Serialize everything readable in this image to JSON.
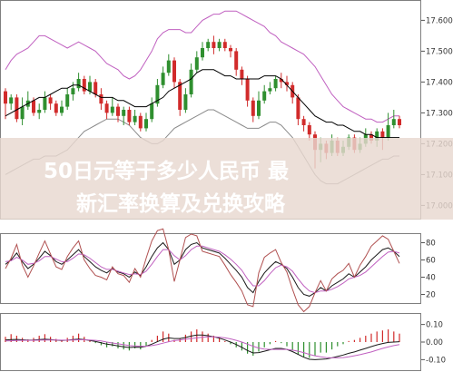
{
  "overlay": {
    "line1": "50日元等于多少人民币 最",
    "line2": "新汇率换算及兑换攻略"
  },
  "colors": {
    "background": "#ffffff",
    "bull_candle": "#2f8f2f",
    "bear_candle": "#d12b2b",
    "ma_line": "#000000",
    "bollinger_upper": "#c060c0",
    "bollinger_lower": "#8a8a8a",
    "overlay_band": "#e8d8cf",
    "osc_k": "#1a1a1a",
    "osc_d": "#c060c0",
    "osc_j": "#b05050",
    "macd_line": "#1a1a1a",
    "signal_line": "#c060c0",
    "hist_pos": "#d12b2b",
    "hist_neg": "#2f8f2f"
  },
  "chart_data": [
    {
      "type": "candlestick",
      "panel": "price",
      "y_ticks": [
        "17.6000",
        "17.5000",
        "17.4000",
        "17.3000",
        "17.2000",
        "17.1000",
        "17.0000"
      ],
      "ylim": [
        16.96,
        17.66
      ],
      "candles": [
        [
          17.37,
          17.33,
          17.38,
          17.28
        ],
        [
          17.33,
          17.35,
          17.36,
          17.31
        ],
        [
          17.35,
          17.28,
          17.36,
          17.27
        ],
        [
          17.28,
          17.32,
          17.35,
          17.26
        ],
        [
          17.32,
          17.34,
          17.37,
          17.31
        ],
        [
          17.34,
          17.3,
          17.35,
          17.29
        ],
        [
          17.3,
          17.31,
          17.33,
          17.28
        ],
        [
          17.31,
          17.35,
          17.37,
          17.3
        ],
        [
          17.35,
          17.33,
          17.36,
          17.31
        ],
        [
          17.33,
          17.3,
          17.34,
          17.29
        ],
        [
          17.3,
          17.32,
          17.34,
          17.29
        ],
        [
          17.32,
          17.36,
          17.38,
          17.31
        ],
        [
          17.36,
          17.38,
          17.4,
          17.34
        ],
        [
          17.38,
          17.41,
          17.43,
          17.37
        ],
        [
          17.41,
          17.37,
          17.42,
          17.36
        ],
        [
          17.37,
          17.4,
          17.42,
          17.36
        ],
        [
          17.4,
          17.36,
          17.41,
          17.35
        ],
        [
          17.36,
          17.33,
          17.38,
          17.31
        ],
        [
          17.33,
          17.3,
          17.34,
          17.28
        ],
        [
          17.3,
          17.32,
          17.35,
          17.29
        ],
        [
          17.32,
          17.29,
          17.33,
          17.27
        ],
        [
          17.29,
          17.31,
          17.32,
          17.26
        ],
        [
          17.31,
          17.27,
          17.32,
          17.26
        ],
        [
          17.27,
          17.29,
          17.31,
          17.26
        ],
        [
          17.29,
          17.25,
          17.3,
          17.24
        ],
        [
          17.25,
          17.28,
          17.3,
          17.24
        ],
        [
          17.28,
          17.33,
          17.35,
          17.27
        ],
        [
          17.33,
          17.39,
          17.41,
          17.32
        ],
        [
          17.39,
          17.43,
          17.45,
          17.38
        ],
        [
          17.43,
          17.47,
          17.49,
          17.42
        ],
        [
          17.47,
          17.4,
          17.48,
          17.38
        ],
        [
          17.4,
          17.31,
          17.41,
          17.29
        ],
        [
          17.31,
          17.36,
          17.38,
          17.3
        ],
        [
          17.36,
          17.44,
          17.46,
          17.35
        ],
        [
          17.44,
          17.48,
          17.5,
          17.43
        ],
        [
          17.48,
          17.51,
          17.53,
          17.47
        ],
        [
          17.51,
          17.53,
          17.54,
          17.5
        ],
        [
          17.53,
          17.51,
          17.55,
          17.49
        ],
        [
          17.51,
          17.53,
          17.54,
          17.5
        ],
        [
          17.53,
          17.51,
          17.54,
          17.5
        ],
        [
          17.51,
          17.5,
          17.52,
          17.48
        ],
        [
          17.5,
          17.44,
          17.51,
          17.42
        ],
        [
          17.44,
          17.41,
          17.45,
          17.39
        ],
        [
          17.41,
          17.34,
          17.42,
          17.32
        ],
        [
          17.34,
          17.29,
          17.35,
          17.27
        ],
        [
          17.29,
          17.34,
          17.37,
          17.28
        ],
        [
          17.34,
          17.37,
          17.39,
          17.33
        ],
        [
          17.37,
          17.38,
          17.4,
          17.36
        ],
        [
          17.38,
          17.41,
          17.42,
          17.37
        ],
        [
          17.41,
          17.4,
          17.43,
          17.38
        ],
        [
          17.4,
          17.39,
          17.42,
          17.37
        ],
        [
          17.39,
          17.35,
          17.4,
          17.33
        ],
        [
          17.35,
          17.28,
          17.36,
          17.26
        ],
        [
          17.28,
          17.26,
          17.29,
          17.24
        ],
        [
          17.26,
          17.23,
          17.27,
          17.21
        ],
        [
          17.23,
          17.18,
          17.24,
          17.12
        ],
        [
          17.18,
          17.2,
          17.22,
          17.14
        ],
        [
          17.2,
          17.17,
          17.21,
          17.15
        ],
        [
          17.17,
          17.21,
          17.23,
          17.16
        ],
        [
          17.21,
          17.17,
          17.22,
          17.16
        ],
        [
          17.17,
          17.19,
          17.21,
          17.16
        ],
        [
          17.19,
          17.22,
          17.23,
          17.18
        ],
        [
          17.22,
          17.18,
          17.23,
          17.17
        ],
        [
          17.18,
          17.2,
          17.22,
          17.17
        ],
        [
          17.2,
          17.23,
          17.25,
          17.19
        ],
        [
          17.23,
          17.21,
          17.24,
          17.2
        ],
        [
          17.21,
          17.24,
          17.25,
          17.19
        ],
        [
          17.24,
          17.22,
          17.25,
          17.18
        ],
        [
          17.22,
          17.26,
          17.3,
          17.21
        ],
        [
          17.26,
          17.28,
          17.31,
          17.25
        ],
        [
          17.28,
          17.26,
          17.29,
          17.25
        ]
      ],
      "ma": [
        17.29,
        17.3,
        17.31,
        17.32,
        17.33,
        17.34,
        17.35,
        17.35,
        17.36,
        17.37,
        17.38,
        17.38,
        17.39,
        17.39,
        17.38,
        17.37,
        17.36,
        17.35,
        17.35,
        17.35,
        17.34,
        17.34,
        17.33,
        17.32,
        17.32,
        17.32,
        17.33,
        17.34,
        17.35,
        17.37,
        17.38,
        17.39,
        17.4,
        17.41,
        17.43,
        17.44,
        17.44,
        17.44,
        17.43,
        17.42,
        17.42,
        17.41,
        17.41,
        17.41,
        17.41,
        17.41,
        17.42,
        17.42,
        17.42,
        17.41,
        17.39,
        17.37,
        17.35,
        17.33,
        17.31,
        17.29,
        17.28,
        17.27,
        17.27,
        17.26,
        17.26,
        17.25,
        17.24,
        17.24,
        17.23,
        17.23,
        17.22,
        17.22,
        17.22,
        17.22,
        17.22
      ],
      "upper": [
        17.44,
        17.47,
        17.49,
        17.5,
        17.51,
        17.53,
        17.55,
        17.55,
        17.54,
        17.53,
        17.52,
        17.51,
        17.52,
        17.53,
        17.52,
        17.51,
        17.5,
        17.48,
        17.46,
        17.45,
        17.44,
        17.42,
        17.41,
        17.42,
        17.44,
        17.47,
        17.5,
        17.54,
        17.56,
        17.57,
        17.57,
        17.57,
        17.56,
        17.56,
        17.58,
        17.6,
        17.61,
        17.62,
        17.62,
        17.63,
        17.63,
        17.63,
        17.62,
        17.61,
        17.6,
        17.59,
        17.58,
        17.56,
        17.55,
        17.53,
        17.52,
        17.51,
        17.5,
        17.49,
        17.47,
        17.45,
        17.42,
        17.39,
        17.36,
        17.34,
        17.32,
        17.31,
        17.3,
        17.29,
        17.28,
        17.28,
        17.27,
        17.27,
        17.28,
        17.29,
        17.29
      ],
      "lower": [
        17.1,
        17.11,
        17.12,
        17.13,
        17.14,
        17.15,
        17.15,
        17.16,
        17.16,
        17.16,
        17.17,
        17.18,
        17.2,
        17.22,
        17.24,
        17.25,
        17.26,
        17.27,
        17.28,
        17.28,
        17.28,
        17.27,
        17.26,
        17.24,
        17.22,
        17.21,
        17.2,
        17.2,
        17.21,
        17.23,
        17.25,
        17.26,
        17.27,
        17.28,
        17.29,
        17.3,
        17.31,
        17.31,
        17.3,
        17.29,
        17.28,
        17.27,
        17.26,
        17.25,
        17.25,
        17.25,
        17.26,
        17.27,
        17.27,
        17.26,
        17.24,
        17.22,
        17.19,
        17.16,
        17.13,
        17.1,
        17.08,
        17.07,
        17.07,
        17.07,
        17.08,
        17.09,
        17.1,
        17.11,
        17.12,
        17.13,
        17.14,
        17.15,
        17.15,
        17.16,
        17.16
      ]
    },
    {
      "type": "line",
      "panel": "oscillator",
      "y_ticks": [
        "80",
        "60",
        "40",
        "20"
      ],
      "ylim": [
        10,
        90
      ],
      "series": [
        {
          "color_key": "osc_k",
          "values": [
            55,
            60,
            68,
            58,
            50,
            55,
            62,
            70,
            65,
            58,
            55,
            60,
            66,
            72,
            64,
            58,
            52,
            48,
            45,
            50,
            46,
            44,
            40,
            46,
            42,
            52,
            64,
            74,
            80,
            72,
            55,
            60,
            72,
            78,
            80,
            74,
            72,
            70,
            68,
            62,
            55,
            48,
            40,
            28,
            22,
            35,
            45,
            52,
            58,
            55,
            50,
            40,
            28,
            20,
            18,
            22,
            28,
            24,
            30,
            34,
            38,
            44,
            40,
            46,
            52,
            60,
            66,
            72,
            74,
            70,
            64
          ]
        },
        {
          "color_key": "osc_d",
          "values": [
            58,
            59,
            63,
            60,
            55,
            56,
            59,
            64,
            64,
            61,
            58,
            58,
            62,
            67,
            66,
            62,
            57,
            52,
            49,
            49,
            47,
            45,
            43,
            44,
            43,
            47,
            55,
            64,
            72,
            72,
            65,
            60,
            65,
            72,
            76,
            76,
            74,
            72,
            70,
            66,
            61,
            55,
            48,
            38,
            30,
            30,
            36,
            44,
            51,
            54,
            52,
            47,
            38,
            30,
            24,
            22,
            24,
            24,
            26,
            29,
            33,
            38,
            40,
            42,
            46,
            52,
            58,
            64,
            69,
            70,
            68
          ]
        },
        {
          "color_key": "osc_j",
          "values": [
            50,
            62,
            78,
            54,
            40,
            53,
            68,
            82,
            67,
            52,
            49,
            64,
            74,
            82,
            60,
            50,
            42,
            40,
            37,
            52,
            44,
            42,
            34,
            50,
            40,
            62,
            82,
            94,
            96,
            72,
            35,
            60,
            86,
            90,
            88,
            70,
            68,
            66,
            64,
            54,
            43,
            34,
            24,
            8,
            6,
            45,
            63,
            68,
            72,
            57,
            46,
            26,
            8,
            0,
            6,
            22,
            36,
            24,
            38,
            44,
            48,
            56,
            40,
            54,
            64,
            76,
            82,
            88,
            84,
            70,
            56
          ]
        }
      ]
    },
    {
      "type": "bar",
      "panel": "macd",
      "y_ticks": [
        "0.10",
        "0.00",
        "-0.10"
      ],
      "ylim": [
        -0.16,
        0.16
      ],
      "histogram": [
        0.01,
        0.015,
        0.012,
        0.008,
        0.005,
        0.008,
        0.012,
        0.015,
        0.01,
        0.006,
        0.004,
        0.008,
        0.012,
        0.016,
        0.01,
        0.004,
        -0.002,
        -0.006,
        -0.01,
        -0.008,
        -0.012,
        -0.014,
        -0.016,
        -0.012,
        -0.014,
        -0.008,
        0.004,
        0.012,
        0.02,
        0.016,
        0.004,
        0.006,
        0.014,
        0.02,
        0.024,
        0.02,
        0.016,
        0.012,
        0.008,
        0.002,
        -0.004,
        -0.01,
        -0.016,
        -0.022,
        -0.026,
        -0.018,
        -0.01,
        -0.004,
        0.002,
        -0.002,
        -0.008,
        -0.016,
        -0.024,
        -0.028,
        -0.03,
        -0.026,
        -0.02,
        -0.02,
        -0.014,
        -0.008,
        -0.004,
        0.002,
        0.004,
        0.008,
        0.012,
        0.016,
        0.02,
        0.022,
        0.024,
        0.02,
        0.016
      ],
      "series": [
        {
          "color_key": "macd_line",
          "values": [
            0.012,
            0.014,
            0.015,
            0.013,
            0.011,
            0.012,
            0.014,
            0.016,
            0.014,
            0.011,
            0.009,
            0.011,
            0.014,
            0.017,
            0.014,
            0.009,
            0.003,
            -0.004,
            -0.012,
            -0.016,
            -0.022,
            -0.027,
            -0.031,
            -0.029,
            -0.03,
            -0.024,
            -0.012,
            0.002,
            0.016,
            0.024,
            0.02,
            0.02,
            0.026,
            0.034,
            0.04,
            0.04,
            0.036,
            0.03,
            0.022,
            0.012,
            0.0,
            -0.014,
            -0.03,
            -0.048,
            -0.062,
            -0.06,
            -0.052,
            -0.044,
            -0.036,
            -0.036,
            -0.042,
            -0.054,
            -0.07,
            -0.086,
            -0.098,
            -0.1,
            -0.098,
            -0.096,
            -0.09,
            -0.082,
            -0.074,
            -0.064,
            -0.056,
            -0.046,
            -0.036,
            -0.026,
            -0.016,
            -0.008,
            -0.002,
            0.0,
            0.002
          ]
        },
        {
          "color_key": "signal_line",
          "values": [
            0.006,
            0.007,
            0.009,
            0.01,
            0.01,
            0.01,
            0.011,
            0.012,
            0.012,
            0.012,
            0.011,
            0.011,
            0.012,
            0.013,
            0.013,
            0.012,
            0.01,
            0.006,
            0.0,
            -0.005,
            -0.01,
            -0.015,
            -0.02,
            -0.022,
            -0.024,
            -0.024,
            -0.02,
            -0.014,
            -0.006,
            0.002,
            0.008,
            0.012,
            0.016,
            0.02,
            0.024,
            0.028,
            0.03,
            0.03,
            0.028,
            0.024,
            0.018,
            0.01,
            0.0,
            -0.012,
            -0.024,
            -0.034,
            -0.04,
            -0.042,
            -0.042,
            -0.042,
            -0.042,
            -0.046,
            -0.052,
            -0.06,
            -0.07,
            -0.078,
            -0.084,
            -0.088,
            -0.09,
            -0.09,
            -0.088,
            -0.084,
            -0.078,
            -0.072,
            -0.064,
            -0.056,
            -0.046,
            -0.036,
            -0.028,
            -0.02,
            -0.014
          ]
        }
      ]
    }
  ]
}
